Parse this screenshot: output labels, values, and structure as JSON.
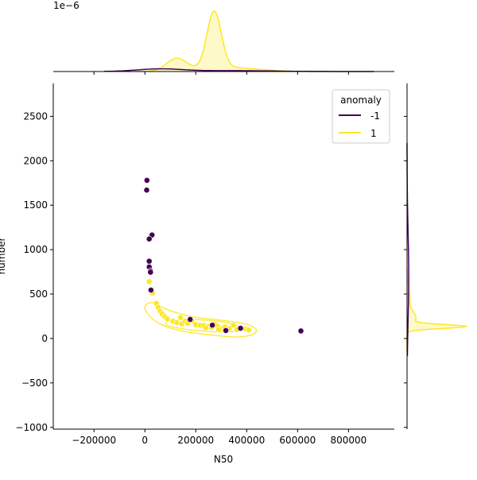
{
  "chart_data": {
    "type": "scatter",
    "title": "",
    "xlabel": "N50",
    "ylabel": "number",
    "xlim": [
      -360000,
      980000
    ],
    "ylim": [
      -1020,
      2870
    ],
    "x_ticks": [
      -200000,
      0,
      200000,
      400000,
      600000,
      800000
    ],
    "x_tick_labels": [
      "−200000",
      "0",
      "200000",
      "400000",
      "600000",
      "800000"
    ],
    "y_ticks": [
      -1000,
      -500,
      0,
      500,
      1000,
      1500,
      2000,
      2500
    ],
    "y_tick_labels": [
      "−1000",
      "−500",
      "0",
      "500",
      "1000",
      "1500",
      "2000",
      "2500"
    ],
    "top_marginal_offset_label": "1e−6",
    "legend": {
      "title": "anomaly",
      "placement": "top-right",
      "entries": [
        {
          "label": "-1",
          "color": "#440154"
        },
        {
          "label": "1",
          "color": "#fde725"
        }
      ]
    },
    "grid": false,
    "series": [
      {
        "name": "-1",
        "color": "#440154",
        "points": [
          [
            8000,
            1780
          ],
          [
            7000,
            1670
          ],
          [
            28000,
            1165
          ],
          [
            17000,
            1120
          ],
          [
            17000,
            870
          ],
          [
            17000,
            805
          ],
          [
            22000,
            760
          ],
          [
            22000,
            745
          ],
          [
            24000,
            545
          ],
          [
            178000,
            215
          ],
          [
            265000,
            150
          ],
          [
            318000,
            90
          ],
          [
            376000,
            115
          ],
          [
            613000,
            85
          ]
        ]
      },
      {
        "name": "1",
        "color": "#fde725",
        "points": [
          [
            17000,
            640
          ],
          [
            30000,
            510
          ],
          [
            45000,
            395
          ],
          [
            52000,
            350
          ],
          [
            60000,
            305
          ],
          [
            68000,
            275
          ],
          [
            78000,
            245
          ],
          [
            88000,
            220
          ],
          [
            110000,
            195
          ],
          [
            125000,
            180
          ],
          [
            140000,
            235
          ],
          [
            145000,
            165
          ],
          [
            158000,
            195
          ],
          [
            168000,
            170
          ],
          [
            185000,
            200
          ],
          [
            200000,
            155
          ],
          [
            218000,
            150
          ],
          [
            232000,
            145
          ],
          [
            248000,
            135
          ],
          [
            262000,
            125
          ],
          [
            275000,
            160
          ],
          [
            285000,
            140
          ],
          [
            300000,
            115
          ],
          [
            315000,
            130
          ],
          [
            332000,
            110
          ],
          [
            348000,
            150
          ],
          [
            362000,
            100
          ],
          [
            395000,
            105
          ],
          [
            408000,
            95
          ],
          [
            290000,
            100
          ],
          [
            240000,
            120
          ]
        ]
      }
    ]
  }
}
